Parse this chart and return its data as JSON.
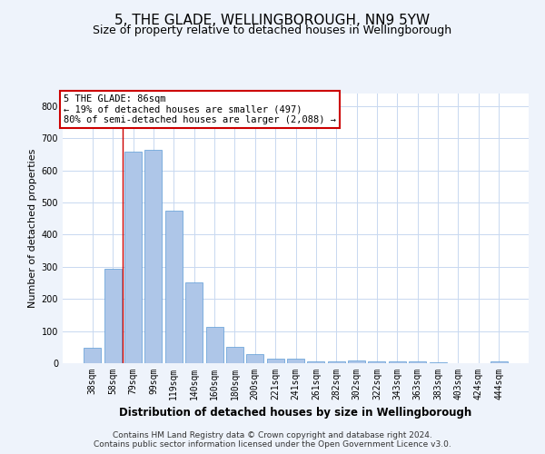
{
  "title": "5, THE GLADE, WELLINGBOROUGH, NN9 5YW",
  "subtitle": "Size of property relative to detached houses in Wellingborough",
  "xlabel": "Distribution of detached houses by size in Wellingborough",
  "ylabel": "Number of detached properties",
  "footer_line1": "Contains HM Land Registry data © Crown copyright and database right 2024.",
  "footer_line2": "Contains public sector information licensed under the Open Government Licence v3.0.",
  "categories": [
    "38sqm",
    "58sqm",
    "79sqm",
    "99sqm",
    "119sqm",
    "140sqm",
    "160sqm",
    "180sqm",
    "200sqm",
    "221sqm",
    "241sqm",
    "261sqm",
    "282sqm",
    "302sqm",
    "322sqm",
    "343sqm",
    "363sqm",
    "383sqm",
    "403sqm",
    "424sqm",
    "444sqm"
  ],
  "values": [
    48,
    295,
    658,
    663,
    475,
    250,
    113,
    52,
    27,
    15,
    14,
    6,
    5,
    8,
    7,
    6,
    6,
    4,
    1,
    0,
    7
  ],
  "bar_color": "#aec6e8",
  "bar_edge_color": "#5b9bd5",
  "vline_x": 1.5,
  "vline_color": "#cc0000",
  "annotation_text": "5 THE GLADE: 86sqm\n← 19% of detached houses are smaller (497)\n80% of semi-detached houses are larger (2,088) →",
  "annotation_box_color": "#cc0000",
  "ylim": [
    0,
    840
  ],
  "yticks": [
    0,
    100,
    200,
    300,
    400,
    500,
    600,
    700,
    800
  ],
  "bg_color": "#eef3fb",
  "plot_bg_color": "#ffffff",
  "grid_color": "#c8d8f0",
  "title_fontsize": 11,
  "subtitle_fontsize": 9,
  "axis_label_fontsize": 8,
  "tick_fontsize": 7,
  "footer_fontsize": 6.5,
  "ann_fontsize": 7.5
}
